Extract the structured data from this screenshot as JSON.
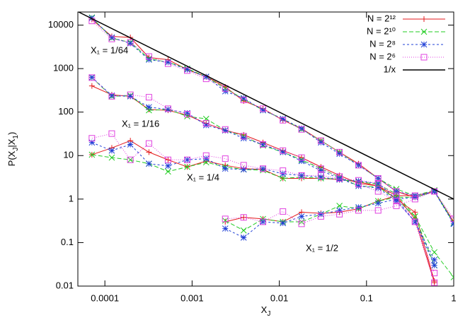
{
  "chart_data": {
    "type": "line",
    "log_x": true,
    "log_y": true,
    "xlabel": [
      "X",
      "J"
    ],
    "ylabel": [
      "P(X",
      "J",
      "|X",
      "1",
      ")"
    ],
    "ylabel_sub": [
      false,
      true,
      false,
      true,
      false
    ],
    "xlim": [
      4.9e-05,
      1
    ],
    "ylim": [
      0.01,
      20000
    ],
    "xticks": [
      0.0001,
      0.001,
      0.01,
      0.1,
      1
    ],
    "yticks": [
      0.01,
      0.1,
      1,
      10,
      100,
      1000,
      10000
    ],
    "legend": "upper-right",
    "annotations": [
      "X₁ = 1/64",
      "X₁ = 1/16",
      "X₁ = 1/4",
      "X₁ = 1/2"
    ],
    "x": [
      7.1e-05,
      0.00012,
      0.000196,
      0.00032,
      0.00053,
      0.00088,
      0.00145,
      0.0024,
      0.0039,
      0.0065,
      0.011,
      0.018,
      0.03,
      0.049,
      0.081,
      0.136,
      0.22,
      0.36,
      0.6,
      1
    ],
    "series": [
      {
        "name": "N = 2¹²",
        "color": "#e41a1c",
        "marker": "plus",
        "dash": "",
        "curves": [
          [
            13500,
            5500,
            5200,
            1800,
            1600,
            950,
            650,
            380,
            180,
            120,
            65,
            42,
            22,
            12,
            6.5,
            3.0,
            1.5,
            1.1,
            1.5,
            0.3
          ],
          [
            400,
            250,
            230,
            115,
            110,
            85,
            55,
            38,
            30,
            20,
            13,
            9,
            5.5,
            3.5,
            2.3,
            2.0,
            1.0,
            0.5,
            0.013,
            null
          ],
          [
            10.5,
            15,
            22,
            12,
            8,
            5.5,
            7.5,
            6,
            5,
            4.8,
            3,
            3,
            3,
            2.8,
            2.5,
            2,
            1.2,
            0.35,
            0.012,
            null
          ],
          [
            null,
            null,
            null,
            null,
            null,
            null,
            null,
            0.3,
            0.38,
            0.35,
            0.3,
            0.5,
            0.47,
            0.5,
            0.6,
            0.9,
            1.2,
            1.2,
            1.5,
            0.3
          ]
        ]
      },
      {
        "name": "N = 2¹⁰",
        "color": "#22cc22",
        "marker": "cross",
        "dash": "6 3",
        "curves": [
          [
            15000,
            5000,
            4000,
            1700,
            1400,
            1000,
            650,
            350,
            200,
            110,
            70,
            40,
            22,
            12,
            6,
            3,
            1.7,
            1.2,
            1.6,
            0.28
          ],
          [
            620,
            230,
            240,
            110,
            115,
            80,
            70,
            38,
            28,
            17,
            12,
            8,
            5,
            3.2,
            2,
            1.9,
            1,
            0.4,
            0.06,
            0.016
          ],
          [
            10.5,
            9,
            8,
            6.5,
            4.3,
            5.5,
            7,
            5.5,
            4.8,
            4.6,
            3,
            3.2,
            3,
            2.9,
            2.5,
            2.2,
            1.3,
            0.4,
            0.03,
            null
          ],
          [
            null,
            null,
            null,
            null,
            null,
            null,
            null,
            0.32,
            0.19,
            0.35,
            0.3,
            0.3,
            0.45,
            0.7,
            0.6,
            0.9,
            1.1,
            1.1,
            1.5,
            0.28
          ]
        ]
      },
      {
        "name": "N = 2⁸",
        "color": "#1f3fd6",
        "marker": "star",
        "dash": "3 3",
        "curves": [
          [
            14500,
            5200,
            3800,
            1600,
            1400,
            950,
            650,
            300,
            210,
            110,
            70,
            42,
            20,
            11,
            6,
            3,
            1.5,
            1.2,
            1.5,
            0.27
          ],
          [
            630,
            240,
            230,
            130,
            115,
            95,
            50,
            38,
            25,
            18,
            12,
            7.5,
            4.5,
            3,
            2,
            1.8,
            0.9,
            0.3,
            0.04,
            null
          ],
          [
            20,
            13,
            18,
            6.5,
            5.8,
            8,
            8.5,
            5,
            4.8,
            5,
            3.8,
            3.5,
            3.2,
            2.8,
            2.6,
            2.3,
            1.0,
            0.3,
            0.03,
            null
          ],
          [
            null,
            null,
            null,
            null,
            null,
            null,
            null,
            0.21,
            0.13,
            0.3,
            0.28,
            0.4,
            0.45,
            0.55,
            0.65,
            0.8,
            1.0,
            1.1,
            1.5,
            0.27
          ]
        ]
      },
      {
        "name": "N = 2⁶",
        "color": "#e040e0",
        "marker": "square",
        "dash": "1 2",
        "curves": [
          [
            12500,
            4800,
            4000,
            1900,
            1300,
            900,
            580,
            350,
            190,
            120,
            65,
            40,
            22,
            12,
            6,
            3,
            1.5,
            1.2,
            1.5,
            0.35
          ],
          [
            620,
            230,
            250,
            220,
            120,
            90,
            55,
            40,
            28,
            18,
            13,
            9,
            5,
            3.3,
            2.2,
            1.5,
            0.9,
            0.3,
            0.012,
            null
          ],
          [
            25,
            32,
            8,
            19,
            8,
            8,
            10,
            8.5,
            6,
            5,
            4.5,
            3.5,
            3.5,
            3,
            2.7,
            2.3,
            1.2,
            0.3,
            0.02,
            null
          ],
          [
            null,
            null,
            null,
            null,
            null,
            null,
            null,
            0.35,
            0.38,
            0.3,
            0.52,
            0.27,
            0.4,
            0.45,
            0.55,
            0.55,
            0.7,
            1.0,
            1.5,
            0.35
          ]
        ]
      }
    ],
    "reference": {
      "name": "1/x",
      "color": "#000000",
      "x": [
        5e-05,
        1
      ],
      "values": [
        20000,
        1
      ]
    }
  }
}
